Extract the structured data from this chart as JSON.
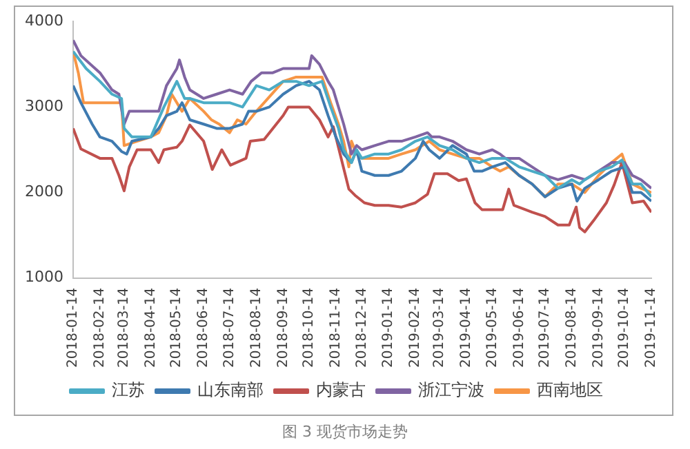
{
  "chart_data": {
    "type": "line",
    "annotations": [
      "图 3 现货市场走势"
    ],
    "xlim": [
      "2018-01-14",
      "2019-11-14"
    ],
    "xticks": [
      "2018-01-14",
      "2018-02-14",
      "2018-03-14",
      "2018-04-14",
      "2018-05-14",
      "2018-06-14",
      "2018-07-14",
      "2018-08-14",
      "2018-09-14",
      "2018-10-14",
      "2018-11-14",
      "2018-12-14",
      "2019-01-14",
      "2019-02-14",
      "2019-03-14",
      "2019-04-14",
      "2019-05-14",
      "2019-06-14",
      "2019-07-14",
      "2019-08-14",
      "2019-09-14",
      "2019-10-14",
      "2019-11-14"
    ],
    "ylim": [
      1000,
      4000
    ],
    "yticks": [
      1000,
      2000,
      3000,
      4000
    ],
    "grid": false,
    "legend": "bottom",
    "marker": "none",
    "line_style": "solid",
    "series": [
      {
        "name": "江苏",
        "color": "#4bacc6",
        "x": [
          "2018-01-14",
          "2018-01-29",
          "2018-02-14",
          "2018-02-28",
          "2018-03-11",
          "2018-03-14",
          "2018-03-23",
          "2018-04-14",
          "2018-04-29",
          "2018-05-14",
          "2018-05-23",
          "2018-05-29",
          "2018-06-14",
          "2018-06-29",
          "2018-07-14",
          "2018-07-29",
          "2018-08-14",
          "2018-08-29",
          "2018-09-14",
          "2018-09-29",
          "2018-10-14",
          "2018-10-29",
          "2018-11-08",
          "2018-11-17",
          "2018-11-23",
          "2018-12-02",
          "2018-12-08",
          "2018-12-14",
          "2018-12-29",
          "2019-01-14",
          "2019-01-29",
          "2019-02-14",
          "2019-02-28",
          "2019-03-14",
          "2019-03-29",
          "2019-04-14",
          "2019-04-29",
          "2019-05-14",
          "2019-05-29",
          "2019-06-14",
          "2019-06-29",
          "2019-07-14",
          "2019-07-29",
          "2019-08-14",
          "2019-08-23",
          "2019-08-29",
          "2019-09-14",
          "2019-09-29",
          "2019-10-11",
          "2019-10-23",
          "2019-11-02",
          "2019-11-14"
        ],
        "values": [
          3650,
          3450,
          3300,
          3150,
          3100,
          2750,
          2650,
          2650,
          3000,
          3300,
          3100,
          3100,
          3050,
          3050,
          3050,
          3000,
          3250,
          3200,
          3300,
          3300,
          3250,
          3300,
          3000,
          2750,
          2500,
          2350,
          2500,
          2400,
          2450,
          2450,
          2500,
          2600,
          2650,
          2550,
          2500,
          2400,
          2350,
          2400,
          2400,
          2300,
          2250,
          2200,
          2050,
          2150,
          2100,
          2150,
          2250,
          2300,
          2380,
          2100,
          2100,
          1950
        ]
      },
      {
        "name": "山东南部",
        "color": "#3e7ab0",
        "x": [
          "2018-01-14",
          "2018-01-23",
          "2018-02-05",
          "2018-02-14",
          "2018-02-28",
          "2018-03-11",
          "2018-03-17",
          "2018-03-23",
          "2018-04-14",
          "2018-04-23",
          "2018-05-02",
          "2018-05-14",
          "2018-05-20",
          "2018-05-29",
          "2018-06-14",
          "2018-06-29",
          "2018-07-14",
          "2018-07-29",
          "2018-08-05",
          "2018-08-14",
          "2018-08-29",
          "2018-09-14",
          "2018-09-29",
          "2018-10-14",
          "2018-10-26",
          "2018-11-05",
          "2018-11-14",
          "2018-11-23",
          "2018-12-02",
          "2018-12-08",
          "2018-12-14",
          "2018-12-29",
          "2019-01-14",
          "2019-01-29",
          "2019-02-14",
          "2019-02-23",
          "2019-03-02",
          "2019-03-14",
          "2019-03-29",
          "2019-04-14",
          "2019-04-23",
          "2019-05-02",
          "2019-05-14",
          "2019-05-29",
          "2019-06-14",
          "2019-06-29",
          "2019-07-14",
          "2019-07-29",
          "2019-08-14",
          "2019-08-20",
          "2019-08-29",
          "2019-09-14",
          "2019-09-29",
          "2019-10-14",
          "2019-10-23",
          "2019-11-02",
          "2019-11-14"
        ],
        "values": [
          3250,
          3050,
          2800,
          2650,
          2600,
          2480,
          2450,
          2600,
          2650,
          2750,
          2900,
          2950,
          3050,
          2850,
          2800,
          2750,
          2750,
          2800,
          2950,
          2950,
          3000,
          3150,
          3250,
          3300,
          3200,
          2900,
          2650,
          2450,
          2350,
          2500,
          2250,
          2200,
          2200,
          2250,
          2400,
          2600,
          2500,
          2400,
          2550,
          2450,
          2250,
          2250,
          2300,
          2350,
          2200,
          2100,
          1950,
          2050,
          2100,
          1900,
          2050,
          2150,
          2250,
          2300,
          2000,
          2000,
          1900
        ]
      },
      {
        "name": "内蒙古",
        "color": "#c0504d",
        "x": [
          "2018-01-14",
          "2018-01-23",
          "2018-02-14",
          "2018-02-28",
          "2018-03-08",
          "2018-03-14",
          "2018-03-20",
          "2018-03-29",
          "2018-04-14",
          "2018-04-23",
          "2018-04-29",
          "2018-05-14",
          "2018-05-20",
          "2018-05-29",
          "2018-06-14",
          "2018-06-24",
          "2018-07-05",
          "2018-07-15",
          "2018-08-02",
          "2018-08-07",
          "2018-08-23",
          "2018-09-14",
          "2018-09-20",
          "2018-10-14",
          "2018-10-26",
          "2018-11-05",
          "2018-11-11",
          "2018-11-29",
          "2018-12-07",
          "2018-12-17",
          "2018-12-29",
          "2019-01-14",
          "2019-01-29",
          "2019-02-14",
          "2019-02-28",
          "2019-03-08",
          "2019-03-23",
          "2019-04-05",
          "2019-04-14",
          "2019-04-24",
          "2019-05-02",
          "2019-05-26",
          "2019-06-02",
          "2019-06-08",
          "2019-06-29",
          "2019-07-14",
          "2019-07-29",
          "2019-08-11",
          "2019-08-19",
          "2019-08-23",
          "2019-08-29",
          "2019-09-08",
          "2019-09-23",
          "2019-10-02",
          "2019-10-11",
          "2019-10-23",
          "2019-11-05",
          "2019-11-14"
        ],
        "values": [
          2750,
          2510,
          2400,
          2400,
          2200,
          2020,
          2300,
          2500,
          2500,
          2350,
          2500,
          2530,
          2600,
          2790,
          2600,
          2270,
          2500,
          2320,
          2400,
          2600,
          2620,
          2900,
          3000,
          3000,
          2850,
          2650,
          2770,
          2040,
          1960,
          1880,
          1850,
          1850,
          1830,
          1880,
          1980,
          2220,
          2220,
          2140,
          2160,
          1880,
          1800,
          1800,
          2040,
          1850,
          1770,
          1720,
          1620,
          1620,
          1830,
          1590,
          1540,
          1670,
          1880,
          2090,
          2350,
          1880,
          1900,
          1770
        ]
      },
      {
        "name": "浙江宁波",
        "color": "#8064a2",
        "x": [
          "2018-01-14",
          "2018-01-23",
          "2018-02-14",
          "2018-02-28",
          "2018-03-08",
          "2018-03-14",
          "2018-03-20",
          "2018-04-14",
          "2018-04-23",
          "2018-05-02",
          "2018-05-14",
          "2018-05-17",
          "2018-05-23",
          "2018-05-29",
          "2018-06-14",
          "2018-06-29",
          "2018-07-14",
          "2018-07-29",
          "2018-08-08",
          "2018-08-20",
          "2018-09-02",
          "2018-09-14",
          "2018-10-14",
          "2018-10-17",
          "2018-10-26",
          "2018-11-05",
          "2018-11-11",
          "2018-11-23",
          "2018-12-02",
          "2018-12-08",
          "2018-12-14",
          "2018-12-29",
          "2019-01-14",
          "2019-01-29",
          "2019-02-14",
          "2019-02-28",
          "2019-03-05",
          "2019-03-14",
          "2019-03-29",
          "2019-04-14",
          "2019-04-29",
          "2019-05-14",
          "2019-05-23",
          "2019-05-29",
          "2019-06-14",
          "2019-06-29",
          "2019-07-14",
          "2019-07-29",
          "2019-08-14",
          "2019-08-29",
          "2019-09-14",
          "2019-09-29",
          "2019-10-14",
          "2019-10-23",
          "2019-11-02",
          "2019-11-14"
        ],
        "values": [
          3780,
          3600,
          3400,
          3200,
          3150,
          2800,
          2950,
          2950,
          2950,
          3250,
          3450,
          3550,
          3350,
          3200,
          3100,
          3150,
          3200,
          3150,
          3300,
          3400,
          3400,
          3450,
          3450,
          3600,
          3500,
          3300,
          3200,
          2800,
          2450,
          2550,
          2500,
          2550,
          2600,
          2600,
          2650,
          2700,
          2650,
          2650,
          2600,
          2500,
          2450,
          2500,
          2450,
          2400,
          2400,
          2300,
          2200,
          2150,
          2200,
          2150,
          2250,
          2350,
          2350,
          2200,
          2150,
          2050
        ]
      },
      {
        "name": "西南地区",
        "color": "#f79646",
        "x": [
          "2018-01-14",
          "2018-01-20",
          "2018-01-26",
          "2018-02-14",
          "2018-02-28",
          "2018-03-11",
          "2018-03-14",
          "2018-03-29",
          "2018-04-14",
          "2018-04-23",
          "2018-05-02",
          "2018-05-08",
          "2018-05-20",
          "2018-05-29",
          "2018-06-14",
          "2018-06-23",
          "2018-07-02",
          "2018-07-14",
          "2018-07-23",
          "2018-08-02",
          "2018-08-14",
          "2018-08-23",
          "2018-09-14",
          "2018-09-29",
          "2018-10-14",
          "2018-10-29",
          "2018-11-08",
          "2018-11-17",
          "2018-11-23",
          "2018-11-29",
          "2018-12-02",
          "2018-12-08",
          "2018-12-14",
          "2018-12-29",
          "2019-01-14",
          "2019-01-29",
          "2019-02-14",
          "2019-03-02",
          "2019-03-14",
          "2019-03-29",
          "2019-04-14",
          "2019-04-29",
          "2019-05-14",
          "2019-05-23",
          "2019-06-02",
          "2019-06-14",
          "2019-06-29",
          "2019-07-14",
          "2019-07-29",
          "2019-08-14",
          "2019-08-29",
          "2019-09-14",
          "2019-09-29",
          "2019-10-11",
          "2019-10-23",
          "2019-11-02",
          "2019-11-14"
        ],
        "values": [
          3650,
          3400,
          3050,
          3050,
          3050,
          3050,
          2550,
          2600,
          2650,
          2700,
          2900,
          3150,
          2950,
          3100,
          2950,
          2850,
          2800,
          2700,
          2850,
          2800,
          2950,
          3050,
          3300,
          3350,
          3350,
          3350,
          3050,
          2800,
          2600,
          2300,
          2600,
          2450,
          2400,
          2400,
          2400,
          2450,
          2500,
          2600,
          2500,
          2450,
          2400,
          2400,
          2300,
          2250,
          2300,
          2200,
          2100,
          1950,
          2100,
          2100,
          2000,
          2200,
          2350,
          2450,
          2100,
          2050,
          2000
        ]
      }
    ]
  }
}
